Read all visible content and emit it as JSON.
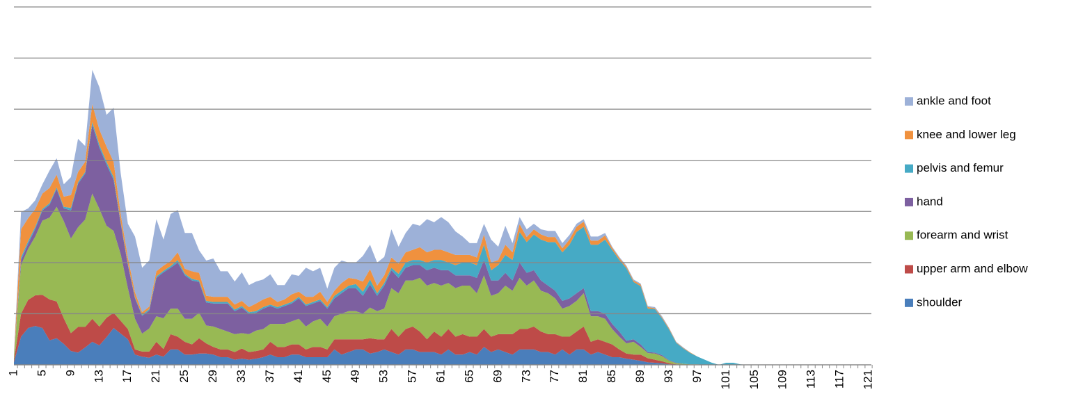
{
  "chart_data": {
    "type": "area",
    "stacked": true,
    "categories": [
      1,
      null,
      null,
      null,
      5,
      null,
      null,
      null,
      9,
      null,
      null,
      null,
      13,
      null,
      null,
      null,
      17,
      null,
      null,
      null,
      21,
      null,
      null,
      null,
      25,
      null,
      null,
      null,
      29,
      null,
      null,
      null,
      33,
      null,
      null,
      null,
      37,
      null,
      null,
      null,
      41,
      null,
      null,
      null,
      45,
      null,
      null,
      null,
      49,
      null,
      null,
      null,
      53,
      null,
      null,
      null,
      57,
      null,
      null,
      null,
      61,
      null,
      null,
      null,
      65,
      null,
      null,
      null,
      69,
      null,
      null,
      null,
      73,
      null,
      null,
      null,
      77,
      null,
      null,
      null,
      81,
      null,
      null,
      null,
      85,
      null,
      null,
      null,
      89,
      null,
      null,
      null,
      93,
      null,
      null,
      null,
      97,
      null,
      null,
      null,
      101,
      null,
      null,
      null,
      105,
      null,
      null,
      null,
      109,
      null,
      null,
      null,
      113,
      null,
      null,
      null,
      117,
      null,
      null,
      null,
      121
    ],
    "series": [
      {
        "name": "shoulder",
        "color": "#4a7ebb",
        "values": [
          0.05,
          0.55,
          0.72,
          0.76,
          0.72,
          0.48,
          0.52,
          0.41,
          0.27,
          0.24,
          0.34,
          0.45,
          0.38,
          0.54,
          0.72,
          0.61,
          0.5,
          0.2,
          0.16,
          0.14,
          0.2,
          0.16,
          0.3,
          0.3,
          0.2,
          0.2,
          0.22,
          0.22,
          0.2,
          0.15,
          0.15,
          0.1,
          0.12,
          0.1,
          0.12,
          0.15,
          0.2,
          0.15,
          0.15,
          0.2,
          0.2,
          0.15,
          0.15,
          0.15,
          0.15,
          0.3,
          0.2,
          0.25,
          0.3,
          0.3,
          0.22,
          0.25,
          0.3,
          0.25,
          0.2,
          0.3,
          0.3,
          0.25,
          0.25,
          0.25,
          0.2,
          0.3,
          0.2,
          0.2,
          0.25,
          0.2,
          0.35,
          0.25,
          0.3,
          0.25,
          0.2,
          0.3,
          0.3,
          0.3,
          0.25,
          0.25,
          0.2,
          0.3,
          0.2,
          0.3,
          0.3,
          0.2,
          0.25,
          0.2,
          0.15,
          0.15,
          0.12,
          0.1,
          0.08,
          0.05,
          0.04,
          0.03,
          0.01,
          0,
          0,
          0,
          0,
          0,
          0,
          0,
          0,
          0,
          0,
          0,
          0,
          0,
          0,
          0,
          0,
          0,
          0,
          0,
          0,
          0,
          0,
          0,
          0,
          0,
          0,
          0,
          0
        ]
      },
      {
        "name": "upper arm and elbow",
        "color": "#be4b48",
        "values": [
          0.03,
          0.45,
          0.55,
          0.6,
          0.65,
          0.8,
          0.72,
          0.5,
          0.35,
          0.5,
          0.4,
          0.45,
          0.37,
          0.38,
          0.3,
          0.25,
          0.2,
          0.1,
          0.1,
          0.12,
          0.25,
          0.15,
          0.3,
          0.25,
          0.25,
          0.2,
          0.3,
          0.2,
          0.15,
          0.15,
          0.15,
          0.15,
          0.2,
          0.15,
          0.15,
          0.15,
          0.25,
          0.2,
          0.2,
          0.2,
          0.2,
          0.15,
          0.2,
          0.2,
          0.15,
          0.2,
          0.3,
          0.25,
          0.2,
          0.2,
          0.3,
          0.25,
          0.2,
          0.45,
          0.35,
          0.4,
          0.45,
          0.4,
          0.25,
          0.4,
          0.35,
          0.4,
          0.35,
          0.4,
          0.3,
          0.35,
          0.35,
          0.3,
          0.3,
          0.35,
          0.4,
          0.4,
          0.4,
          0.45,
          0.4,
          0.35,
          0.4,
          0.25,
          0.35,
          0.35,
          0.45,
          0.25,
          0.25,
          0.25,
          0.25,
          0.15,
          0.1,
          0.1,
          0.12,
          0.08,
          0.06,
          0.04,
          0.02,
          0.01,
          0,
          0,
          0,
          0,
          0,
          0,
          0,
          0,
          0,
          0,
          0,
          0,
          0,
          0,
          0,
          0,
          0,
          0,
          0,
          0,
          0,
          0,
          0,
          0,
          0,
          0,
          0
        ]
      },
      {
        "name": "forearm and wrist",
        "color": "#98b954",
        "values": [
          0.04,
          0.95,
          1.0,
          1.15,
          1.45,
          1.6,
          1.85,
          1.9,
          1.85,
          1.95,
          2.1,
          2.45,
          2.3,
          1.8,
          1.6,
          1.3,
          0.8,
          0.6,
          0.35,
          0.45,
          0.5,
          0.6,
          0.5,
          0.55,
          0.45,
          0.5,
          0.5,
          0.35,
          0.4,
          0.4,
          0.35,
          0.35,
          0.3,
          0.35,
          0.4,
          0.4,
          0.35,
          0.45,
          0.45,
          0.45,
          0.5,
          0.45,
          0.5,
          0.55,
          0.45,
          0.45,
          0.5,
          0.55,
          0.55,
          0.5,
          0.6,
          0.55,
          0.6,
          0.8,
          0.85,
          0.95,
          0.9,
          1.05,
          1.05,
          0.95,
          1.0,
          0.9,
          0.95,
          0.95,
          1.0,
          0.85,
          1.05,
          0.8,
          0.8,
          0.95,
          0.85,
          1.0,
          0.85,
          0.9,
          0.8,
          0.8,
          0.7,
          0.55,
          0.6,
          0.6,
          0.65,
          0.5,
          0.45,
          0.45,
          0.3,
          0.25,
          0.2,
          0.25,
          0.15,
          0.1,
          0.12,
          0.1,
          0.05,
          0.02,
          0.02,
          0.01,
          0.01,
          0,
          0,
          0,
          0,
          0,
          0,
          0,
          0,
          0,
          0,
          0,
          0,
          0,
          0,
          0,
          0,
          0,
          0,
          0,
          0,
          0,
          0,
          0,
          0
        ]
      },
      {
        "name": "hand",
        "color": "#7d60a0",
        "values": [
          0.02,
          0.1,
          0.1,
          0.15,
          0.2,
          0.25,
          0.35,
          0.25,
          0.55,
          0.85,
          0.9,
          1.35,
          1.2,
          1.2,
          1.0,
          0.6,
          0.45,
          0.4,
          0.35,
          0.35,
          0.75,
          0.9,
          0.8,
          0.9,
          0.85,
          0.75,
          0.6,
          0.45,
          0.45,
          0.5,
          0.55,
          0.45,
          0.5,
          0.4,
          0.35,
          0.4,
          0.35,
          0.3,
          0.35,
          0.35,
          0.4,
          0.4,
          0.35,
          0.35,
          0.35,
          0.35,
          0.4,
          0.45,
          0.45,
          0.35,
          0.45,
          0.3,
          0.45,
          0.35,
          0.3,
          0.25,
          0.3,
          0.25,
          0.3,
          0.3,
          0.3,
          0.25,
          0.25,
          0.2,
          0.2,
          0.3,
          0.3,
          0.3,
          0.25,
          0.25,
          0.2,
          0.3,
          0.25,
          0.2,
          0.2,
          0.15,
          0.15,
          0.15,
          0.15,
          0.15,
          0.1,
          0.1,
          0.1,
          0.1,
          0.1,
          0.1,
          0.05,
          0.05,
          0.05,
          0.02,
          0.02,
          0.02,
          0.01,
          0.01,
          0,
          0,
          0,
          0,
          0,
          0,
          0,
          0,
          0,
          0,
          0,
          0,
          0,
          0,
          0,
          0,
          0,
          0,
          0,
          0,
          0,
          0,
          0,
          0,
          0,
          0,
          0
        ]
      },
      {
        "name": "pelvis and femur",
        "color": "#46aac5",
        "values": [
          0.01,
          0.05,
          0.05,
          0.04,
          0.03,
          0.03,
          0.03,
          0.03,
          0.05,
          0.03,
          0.03,
          0.05,
          0.05,
          0.05,
          0.05,
          0.03,
          0.03,
          0.02,
          0.02,
          0.03,
          0.03,
          0.03,
          0.03,
          0.05,
          0.03,
          0.03,
          0.03,
          0.03,
          0.03,
          0.03,
          0.03,
          0.03,
          0.03,
          0.03,
          0.03,
          0.03,
          0.03,
          0.03,
          0.03,
          0.03,
          0.03,
          0.03,
          0.03,
          0.03,
          0.03,
          0.05,
          0.05,
          0.05,
          0.08,
          0.08,
          0.1,
          0.05,
          0.05,
          0.05,
          0.08,
          0.1,
          0.1,
          0.1,
          0.15,
          0.15,
          0.2,
          0.15,
          0.2,
          0.25,
          0.25,
          0.25,
          0.3,
          0.2,
          0.3,
          0.35,
          0.4,
          0.6,
          0.6,
          0.7,
          0.8,
          0.85,
          0.95,
          0.95,
          1.05,
          1.2,
          1.2,
          1.3,
          1.3,
          1.45,
          1.45,
          1.4,
          1.42,
          1.12,
          1.14,
          0.85,
          0.85,
          0.72,
          0.6,
          0.39,
          0.3,
          0.22,
          0.15,
          0.1,
          0.04,
          0,
          0.04,
          0.04,
          0.01,
          0,
          0,
          0,
          0,
          0,
          0,
          0,
          0,
          0,
          0,
          0,
          0,
          0,
          0,
          0,
          0,
          0,
          0
        ]
      },
      {
        "name": "knee and lower leg",
        "color": "#f0913e",
        "values": [
          0.03,
          0.55,
          0.45,
          0.35,
          0.3,
          0.3,
          0.25,
          0.2,
          0.25,
          0.2,
          0.2,
          0.35,
          0.3,
          0.3,
          0.3,
          0.15,
          0.12,
          0.1,
          0.05,
          0.05,
          0.1,
          0.1,
          0.1,
          0.15,
          0.1,
          0.15,
          0.15,
          0.1,
          0.1,
          0.1,
          0.1,
          0.1,
          0.1,
          0.1,
          0.15,
          0.15,
          0.15,
          0.1,
          0.1,
          0.15,
          0.1,
          0.15,
          0.1,
          0.15,
          0.1,
          0.1,
          0.15,
          0.15,
          0.1,
          0.2,
          0.2,
          0.15,
          0.15,
          0.2,
          0.2,
          0.2,
          0.2,
          0.25,
          0.2,
          0.2,
          0.2,
          0.2,
          0.2,
          0.15,
          0.15,
          0.15,
          0.2,
          0.15,
          0.1,
          0.2,
          0.15,
          0.15,
          0.1,
          0.1,
          0.1,
          0.1,
          0.1,
          0.08,
          0.1,
          0.1,
          0.1,
          0.08,
          0.08,
          0.08,
          0.04,
          0.04,
          0.03,
          0.03,
          0.03,
          0.03,
          0.02,
          0.02,
          0.02,
          0.01,
          0.01,
          0.01,
          0,
          0,
          0,
          0,
          0,
          0,
          0,
          0,
          0,
          0,
          0,
          0,
          0,
          0,
          0,
          0,
          0,
          0,
          0,
          0,
          0,
          0,
          0,
          0,
          0
        ]
      },
      {
        "name": "ankle and foot",
        "color": "#9db1d8",
        "values": [
          0.02,
          0.34,
          0.19,
          0.17,
          0.18,
          0.34,
          0.32,
          0.24,
          0.35,
          0.65,
          0.31,
          0.67,
          0.83,
          0.62,
          1.06,
          0.8,
          0.66,
          1.09,
          0.87,
          0.9,
          1.02,
          0.51,
          0.92,
          0.83,
          0.7,
          0.75,
          0.44,
          0.69,
          0.75,
          0.5,
          0.5,
          0.45,
          0.56,
          0.43,
          0.43,
          0.39,
          0.44,
          0.33,
          0.28,
          0.39,
          0.31,
          0.57,
          0.5,
          0.47,
          0.26,
          0.45,
          0.44,
          0.3,
          0.32,
          0.5,
          0.48,
          0.45,
          0.36,
          0.55,
          0.33,
          0.38,
          0.51,
          0.42,
          0.65,
          0.54,
          0.64,
          0.59,
          0.46,
          0.36,
          0.23,
          0.28,
          0.21,
          0.45,
          0.26,
          0.37,
          0.18,
          0.14,
          0.15,
          0.11,
          0.1,
          0.12,
          0.12,
          0.1,
          0.09,
          0.06,
          0.05,
          0.08,
          0.08,
          0.05,
          0.02,
          0.02,
          0.02,
          0.02,
          0.02,
          0.02,
          0.02,
          0.02,
          0.01,
          0.01,
          0.01,
          0,
          0,
          0,
          0,
          0,
          0,
          0,
          0,
          0,
          0,
          0,
          0,
          0,
          0,
          0,
          0,
          0,
          0,
          0,
          0,
          0,
          0,
          0,
          0,
          0,
          0
        ]
      }
    ],
    "ylim": [
      0,
      7
    ],
    "yticks": [
      0,
      1,
      2,
      3,
      4,
      5,
      6,
      7
    ],
    "grid": true,
    "legend": "right"
  }
}
